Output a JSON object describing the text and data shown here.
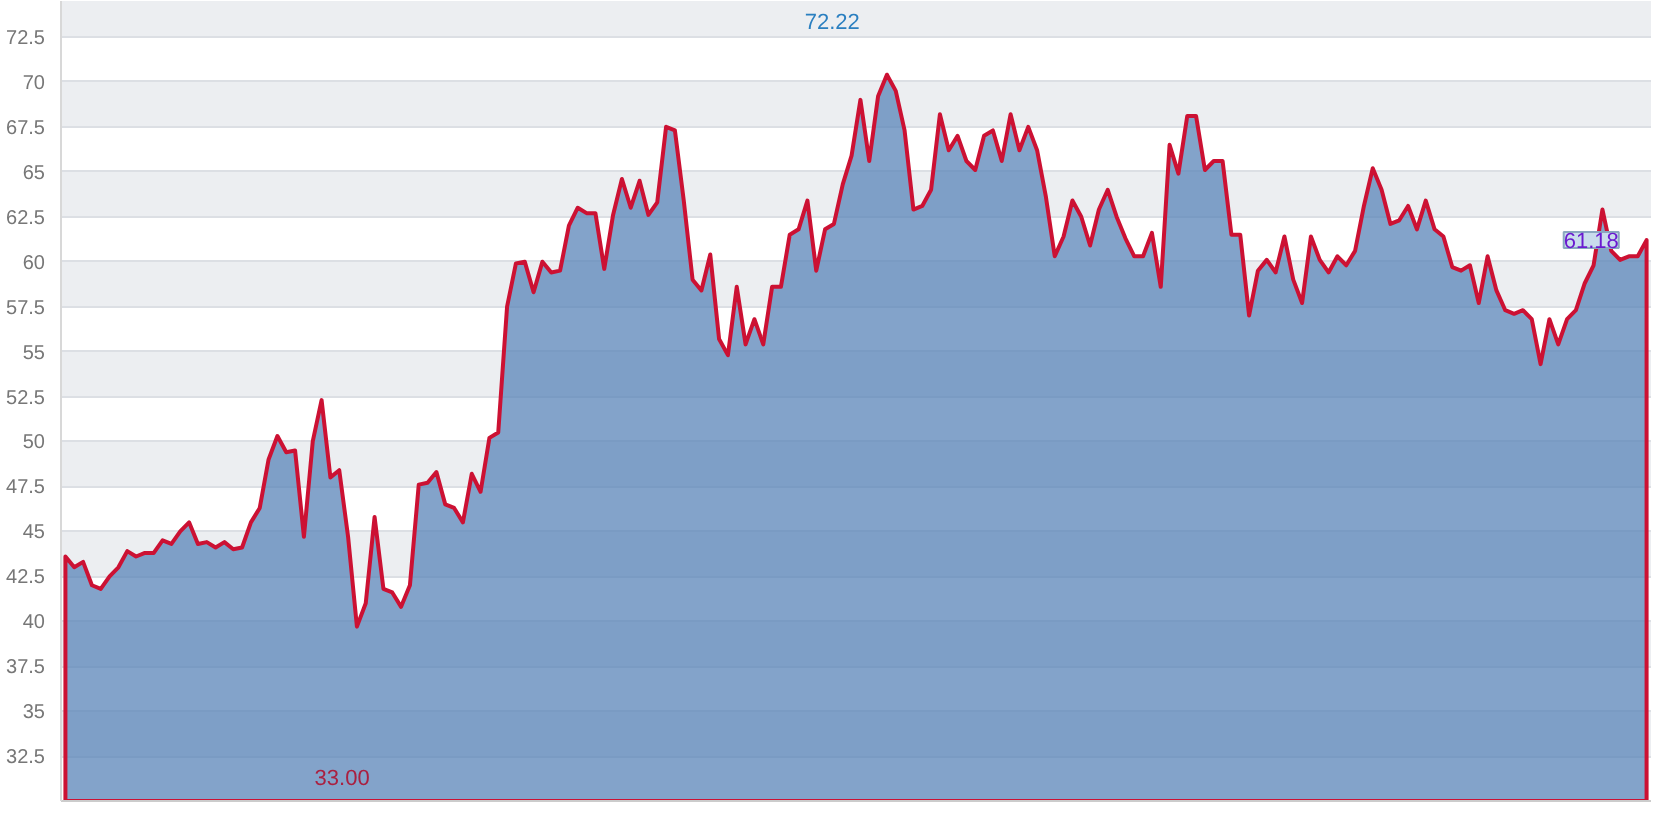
{
  "chart_data": {
    "type": "area",
    "categories": [
      null,
      null,
      null,
      null,
      null,
      null,
      null,
      null,
      null,
      null,
      null,
      null,
      null,
      null,
      null,
      null,
      null,
      null,
      null,
      null,
      null,
      null,
      null,
      null,
      null,
      null,
      null,
      null,
      null,
      null,
      null,
      null,
      null,
      null,
      null,
      null,
      null,
      null,
      null,
      null,
      null,
      null,
      null,
      null,
      null,
      null,
      null,
      null,
      null,
      null,
      null,
      null,
      null,
      null,
      null,
      null,
      null,
      null,
      null,
      null,
      null,
      null,
      null,
      null,
      null,
      null,
      null,
      null,
      null,
      null,
      null,
      null,
      null,
      null,
      null,
      null,
      null,
      null,
      null,
      null,
      null,
      null,
      null,
      null,
      null,
      null,
      null,
      null,
      null,
      null,
      null,
      null,
      null,
      null,
      null,
      null,
      null,
      null,
      null,
      null,
      null,
      null,
      null,
      null,
      null,
      null,
      null,
      null,
      null,
      null,
      null,
      null,
      null,
      null,
      null,
      null,
      null,
      null,
      null,
      null,
      null,
      null,
      null,
      null,
      null,
      null,
      null,
      null,
      null,
      null,
      null,
      null,
      null,
      null,
      null,
      null,
      null,
      null,
      null,
      null,
      null,
      null,
      null,
      null,
      null,
      null,
      null,
      null,
      null,
      null,
      null,
      null,
      null,
      null,
      null,
      null,
      null,
      null,
      null,
      null,
      null,
      null,
      null,
      null,
      null,
      null,
      null,
      null,
      null,
      null,
      null,
      null,
      null,
      null,
      null,
      null,
      null,
      null,
      null,
      null
    ],
    "series": [
      {
        "color": "#cc1133",
        "values": [
          43.6,
          43.0,
          43.3,
          42.0,
          41.8,
          42.5,
          43.0,
          43.9,
          43.6,
          43.8,
          43.8,
          44.5,
          44.3,
          45.0,
          45.5,
          44.3,
          44.4,
          44.1,
          44.4,
          44.0,
          44.1,
          45.5,
          46.3,
          49.0,
          50.3,
          49.4,
          49.5,
          44.7,
          50.0,
          52.3,
          48.0,
          48.4,
          44.7,
          39.7,
          41.0,
          45.8,
          41.8,
          41.6,
          40.8,
          42.0,
          47.6,
          47.7,
          48.3,
          46.5,
          46.3,
          45.5,
          48.2,
          47.2,
          50.2,
          50.5,
          57.5,
          59.9,
          60.0,
          58.3,
          60.0,
          59.4,
          59.5,
          62.0,
          63.0,
          62.7,
          62.7,
          59.6,
          62.6,
          64.6,
          63.0,
          64.5,
          62.6,
          63.3,
          67.5,
          67.3,
          63.4,
          59.0,
          58.4,
          60.4,
          55.7,
          54.8,
          58.6,
          55.4,
          56.8,
          55.4,
          58.6,
          58.6,
          61.5,
          61.8,
          63.4,
          59.5,
          61.8,
          62.1,
          64.3,
          65.9,
          69.0,
          65.6,
          69.2,
          70.4,
          69.5,
          67.3,
          62.9,
          63.1,
          64.0,
          68.2,
          66.2,
          67.0,
          65.6,
          65.1,
          67.0,
          67.3,
          65.6,
          68.2,
          66.2,
          67.5,
          66.2,
          63.6,
          60.3,
          61.4,
          63.4,
          62.5,
          60.9,
          62.9,
          64.0,
          62.5,
          61.3,
          60.3,
          60.3,
          61.6,
          58.6,
          66.5,
          64.9,
          68.1,
          68.1,
          65.1,
          65.6,
          65.6,
          61.5,
          61.5,
          57.0,
          59.5,
          60.1,
          59.4,
          61.4,
          59.0,
          57.7,
          61.4,
          60.1,
          59.4,
          60.3,
          59.8,
          60.6,
          63.1,
          65.2,
          64.0,
          62.1,
          62.3,
          63.1,
          61.8,
          63.4,
          61.8,
          61.4,
          59.7,
          59.5,
          59.8,
          57.7,
          60.3,
          58.4,
          57.3,
          57.1,
          57.3,
          56.8,
          54.3,
          56.8,
          55.4,
          56.8,
          57.3,
          58.8,
          59.8,
          62.9,
          60.6,
          60.1,
          60.3,
          60.3,
          61.2
        ]
      }
    ],
    "ylim": [
      30,
      74.5
    ],
    "yticks": [
      32.5,
      35,
      37.5,
      40,
      42.5,
      45,
      47.5,
      50,
      52.5,
      55,
      57.5,
      60,
      62.5,
      65,
      67.5,
      70,
      72.5
    ],
    "grid": "y",
    "tick_labels": "y",
    "annotations": [
      "72.22",
      "33.00",
      "61.18"
    ]
  }
}
